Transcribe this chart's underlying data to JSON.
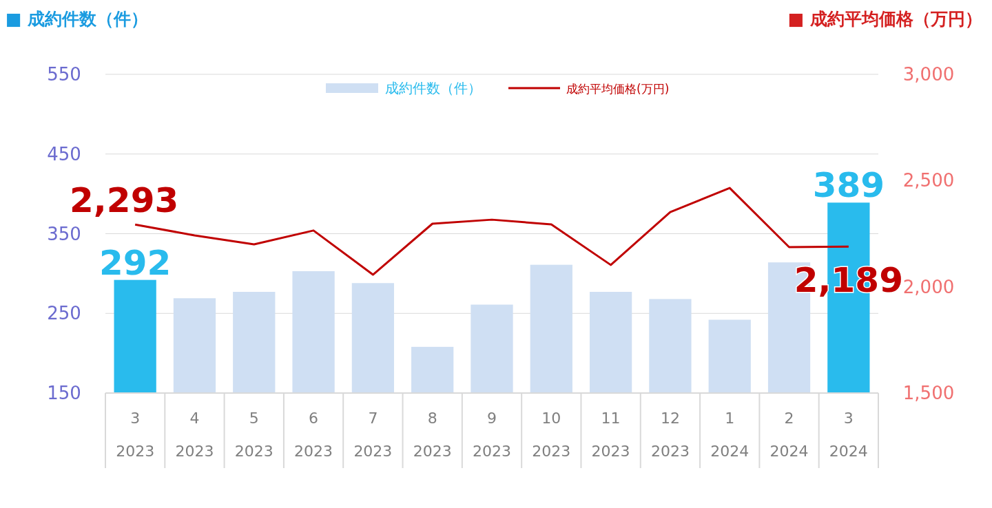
{
  "chart_data": {
    "type": "bar",
    "ylabel": "■ 成約件数（件）",
    "y2label": "■ 成約平均価格（万円）",
    "categories": [
      "3\n2023",
      "4\n2023",
      "5\n2023",
      "6\n2023",
      "7\n2023",
      "8\n2023",
      "9\n2023",
      "10\n2023",
      "11\n2023",
      "12\n2023",
      "1\n2024",
      "2\n2024",
      "3\n2024"
    ],
    "series": [
      {
        "name": "成約件数（件）",
        "color": "#cfdff3",
        "colors": [
          "#29bbed",
          "#cfdff3",
          "#cfdff3",
          "#cfdff3",
          "#cfdff3",
          "#cfdff3",
          "#cfdff3",
          "#cfdff3",
          "#cfdff3",
          "#cfdff3",
          "#cfdff3",
          "#cfdff3",
          "#29bbed"
        ],
        "values": [
          292,
          269,
          277,
          303,
          288,
          208,
          261,
          311,
          277,
          268,
          242,
          314,
          389
        ],
        "value_labels": [
          "292",
          null,
          null,
          null,
          null,
          null,
          null,
          null,
          null,
          null,
          null,
          null,
          "389"
        ]
      },
      {
        "name": "成約平均価格(万円)",
        "type": "line",
        "axis": "y2",
        "color": "#c00000",
        "values": [
          2293,
          2242,
          2200,
          2265,
          2057,
          2297,
          2316,
          2294,
          2103,
          2352,
          2465,
          2187,
          2189
        ],
        "value_labels": [
          "2,293",
          null,
          null,
          null,
          null,
          null,
          null,
          null,
          null,
          null,
          null,
          null,
          "2,189"
        ]
      }
    ],
    "ylim": [
      150,
      550
    ],
    "yticks": [
      150,
      250,
      350,
      450,
      550
    ],
    "y2lim": [
      1500,
      3000
    ],
    "y2ticks": [
      {
        "value": 1500,
        "label": "1,500"
      },
      {
        "value": 2000,
        "label": "2,000"
      },
      {
        "value": 2500,
        "label": "2,500"
      },
      {
        "value": 3000,
        "label": "3,000"
      }
    ],
    "grid": "y",
    "legend": "top",
    "marker": "none",
    "line_style": "solid"
  }
}
